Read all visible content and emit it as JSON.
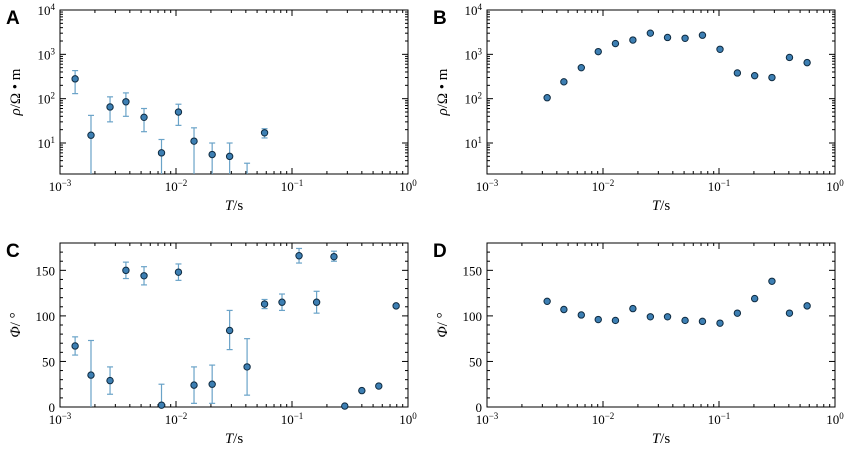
{
  "chart_data": [
    {
      "id": "A",
      "panel_label": "A",
      "type": "scatter",
      "x_scale": "log",
      "y_scale": "log",
      "xlim": [
        0.001,
        1
      ],
      "ylim": [
        2,
        10000
      ],
      "xlabel": {
        "italic": "T",
        "rest": "/s"
      },
      "ylabel": {
        "italic": "ρ",
        "rest": "/Ω • m"
      },
      "x_ticks": [
        {
          "value": 0.001,
          "base": "10",
          "exp": "−3"
        },
        {
          "value": 0.01,
          "base": "10",
          "exp": "−2"
        },
        {
          "value": 0.1,
          "base": "10",
          "exp": "−1"
        },
        {
          "value": 1,
          "base": "10",
          "exp": "0"
        }
      ],
      "y_ticks": [
        {
          "value": 10,
          "base": "10",
          "exp": "1"
        },
        {
          "value": 100,
          "base": "10",
          "exp": "2"
        },
        {
          "value": 1000,
          "base": "10",
          "exp": "3"
        },
        {
          "value": 10000,
          "base": "10",
          "exp": "4"
        }
      ],
      "points": [
        {
          "x": 0.00135,
          "y": 280,
          "lo": 130,
          "hi": 430
        },
        {
          "x": 0.00185,
          "y": 15,
          "lo": 2,
          "hi": 42
        },
        {
          "x": 0.0027,
          "y": 65,
          "lo": 30,
          "hi": 110
        },
        {
          "x": 0.0037,
          "y": 85,
          "lo": 40,
          "hi": 135
        },
        {
          "x": 0.0053,
          "y": 38,
          "lo": 18,
          "hi": 60
        },
        {
          "x": 0.0075,
          "y": 6,
          "lo": 2,
          "hi": 12
        },
        {
          "x": 0.0105,
          "y": 50,
          "lo": 25,
          "hi": 75
        },
        {
          "x": 0.0143,
          "y": 11,
          "lo": 2,
          "hi": 22
        },
        {
          "x": 0.0205,
          "y": 5.5,
          "lo": 2,
          "hi": 10
        },
        {
          "x": 0.029,
          "y": 5,
          "lo": 2,
          "hi": 10
        },
        {
          "x": 0.041,
          "y": null,
          "lo": 2,
          "hi": 3.5
        },
        {
          "x": 0.058,
          "y": 17,
          "lo": 13,
          "hi": 21
        }
      ]
    },
    {
      "id": "B",
      "panel_label": "B",
      "type": "scatter",
      "x_scale": "log",
      "y_scale": "log",
      "xlim": [
        0.001,
        1
      ],
      "ylim": [
        2,
        10000
      ],
      "xlabel": {
        "italic": "T",
        "rest": "/s"
      },
      "ylabel": {
        "italic": "ρ",
        "rest": "/Ω • m"
      },
      "x_ticks": [
        {
          "value": 0.001,
          "base": "10",
          "exp": "−3"
        },
        {
          "value": 0.01,
          "base": "10",
          "exp": "−2"
        },
        {
          "value": 0.1,
          "base": "10",
          "exp": "−1"
        },
        {
          "value": 1,
          "base": "10",
          "exp": "0"
        }
      ],
      "y_ticks": [
        {
          "value": 10,
          "base": "10",
          "exp": "1"
        },
        {
          "value": 100,
          "base": "10",
          "exp": "2"
        },
        {
          "value": 1000,
          "base": "10",
          "exp": "3"
        },
        {
          "value": 10000,
          "base": "10",
          "exp": "4"
        }
      ],
      "points": [
        {
          "x": 0.0033,
          "y": 105
        },
        {
          "x": 0.0046,
          "y": 240
        },
        {
          "x": 0.0065,
          "y": 500
        },
        {
          "x": 0.0091,
          "y": 1150
        },
        {
          "x": 0.0128,
          "y": 1750
        },
        {
          "x": 0.0181,
          "y": 2100
        },
        {
          "x": 0.0256,
          "y": 3000
        },
        {
          "x": 0.036,
          "y": 2400
        },
        {
          "x": 0.051,
          "y": 2300
        },
        {
          "x": 0.072,
          "y": 2700
        },
        {
          "x": 0.102,
          "y": 1300
        },
        {
          "x": 0.144,
          "y": 380
        },
        {
          "x": 0.203,
          "y": 330
        },
        {
          "x": 0.286,
          "y": 300
        },
        {
          "x": 0.405,
          "y": 850
        },
        {
          "x": 0.575,
          "y": 650
        }
      ]
    },
    {
      "id": "C",
      "panel_label": "C",
      "type": "scatter",
      "x_scale": "log",
      "y_scale": "linear",
      "xlim": [
        0.001,
        1
      ],
      "ylim": [
        0,
        180
      ],
      "xlabel": {
        "italic": "T",
        "rest": "/s"
      },
      "ylabel": {
        "italic": "Φ",
        "rest": "/ °"
      },
      "x_ticks": [
        {
          "value": 0.001,
          "base": "10",
          "exp": "−3"
        },
        {
          "value": 0.01,
          "base": "10",
          "exp": "−2"
        },
        {
          "value": 0.1,
          "base": "10",
          "exp": "−1"
        },
        {
          "value": 1,
          "base": "10",
          "exp": "0"
        }
      ],
      "y_ticks": [
        {
          "value": 0,
          "label": "0"
        },
        {
          "value": 50,
          "label": "50"
        },
        {
          "value": 100,
          "label": "100"
        },
        {
          "value": 150,
          "label": "150"
        }
      ],
      "points": [
        {
          "x": 0.00135,
          "y": 67,
          "lo": 57,
          "hi": 77
        },
        {
          "x": 0.00185,
          "y": 35,
          "lo": 0,
          "hi": 73
        },
        {
          "x": 0.0027,
          "y": 29,
          "lo": 14,
          "hi": 44
        },
        {
          "x": 0.0037,
          "y": 150,
          "lo": 141,
          "hi": 159
        },
        {
          "x": 0.0053,
          "y": 144,
          "lo": 134,
          "hi": 154
        },
        {
          "x": 0.0075,
          "y": 2,
          "lo": 0,
          "hi": 25
        },
        {
          "x": 0.0105,
          "y": 148,
          "lo": 139,
          "hi": 157
        },
        {
          "x": 0.0143,
          "y": 24,
          "lo": 4,
          "hi": 44
        },
        {
          "x": 0.0205,
          "y": 25,
          "lo": 4,
          "hi": 46
        },
        {
          "x": 0.029,
          "y": 84,
          "lo": 63,
          "hi": 106
        },
        {
          "x": 0.041,
          "y": 44,
          "lo": 13,
          "hi": 75
        },
        {
          "x": 0.058,
          "y": 113,
          "lo": 108,
          "hi": 118
        },
        {
          "x": 0.082,
          "y": 115,
          "lo": 106,
          "hi": 124
        },
        {
          "x": 0.115,
          "y": 166,
          "lo": 158,
          "hi": 174
        },
        {
          "x": 0.163,
          "y": 115,
          "lo": 103,
          "hi": 127
        },
        {
          "x": 0.23,
          "y": 165,
          "lo": 160,
          "hi": 171
        },
        {
          "x": 0.285,
          "y": 1,
          "lo": 0,
          "hi": 2
        },
        {
          "x": 0.4,
          "y": 18
        },
        {
          "x": 0.56,
          "y": 23
        },
        {
          "x": 0.79,
          "y": 111
        }
      ]
    },
    {
      "id": "D",
      "panel_label": "D",
      "type": "scatter",
      "x_scale": "log",
      "y_scale": "linear",
      "xlim": [
        0.001,
        1
      ],
      "ylim": [
        0,
        180
      ],
      "xlabel": {
        "italic": "T",
        "rest": "/s"
      },
      "ylabel": {
        "italic": "Φ",
        "rest": "/ °"
      },
      "x_ticks": [
        {
          "value": 0.001,
          "base": "10",
          "exp": "−3"
        },
        {
          "value": 0.01,
          "base": "10",
          "exp": "−2"
        },
        {
          "value": 0.1,
          "base": "10",
          "exp": "−1"
        },
        {
          "value": 1,
          "base": "10",
          "exp": "0"
        }
      ],
      "y_ticks": [
        {
          "value": 0,
          "label": "0"
        },
        {
          "value": 50,
          "label": "50"
        },
        {
          "value": 100,
          "label": "100"
        },
        {
          "value": 150,
          "label": "150"
        }
      ],
      "points": [
        {
          "x": 0.0033,
          "y": 116
        },
        {
          "x": 0.0046,
          "y": 107
        },
        {
          "x": 0.0065,
          "y": 101
        },
        {
          "x": 0.0091,
          "y": 96
        },
        {
          "x": 0.0128,
          "y": 95
        },
        {
          "x": 0.0181,
          "y": 108
        },
        {
          "x": 0.0256,
          "y": 99
        },
        {
          "x": 0.036,
          "y": 99
        },
        {
          "x": 0.051,
          "y": 95
        },
        {
          "x": 0.072,
          "y": 94
        },
        {
          "x": 0.102,
          "y": 92
        },
        {
          "x": 0.144,
          "y": 103
        },
        {
          "x": 0.203,
          "y": 119
        },
        {
          "x": 0.286,
          "y": 138
        },
        {
          "x": 0.405,
          "y": 103
        },
        {
          "x": 0.575,
          "y": 111
        }
      ]
    }
  ]
}
